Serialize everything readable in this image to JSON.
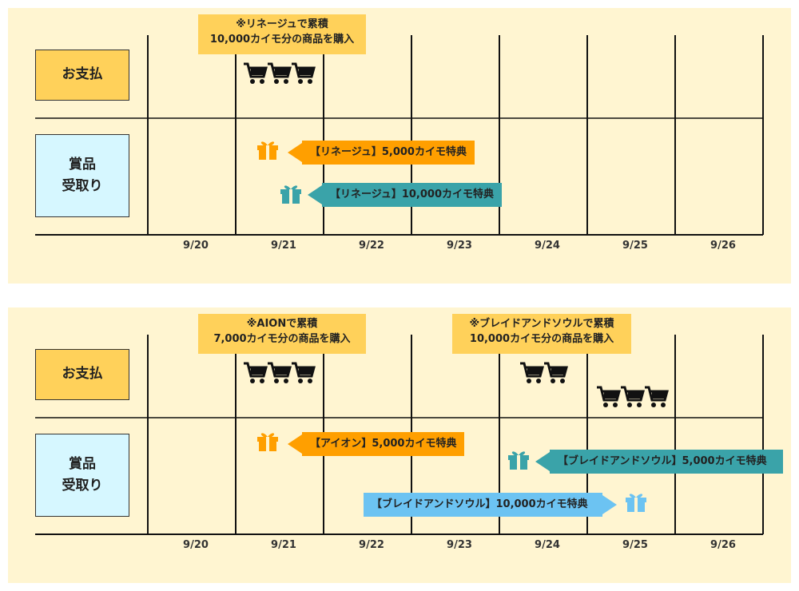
{
  "panels": [
    {
      "payment_label": "お支払",
      "prize_label_line1": "賞品",
      "prize_label_line2": "受取り",
      "dates": [
        "9/20",
        "9/21",
        "9/22",
        "9/23",
        "9/24",
        "9/25",
        "9/26"
      ],
      "notes": [
        {
          "line1": "※リネージュで累積",
          "line2": "10,000カイモ分の商品を購入"
        }
      ],
      "rewards": [
        {
          "label": "【リネージュ】5,000カイモ特典",
          "color": "#ff9f00"
        },
        {
          "label": "【リネージュ】10,000カイモ特典",
          "color": "#3aa3a9"
        }
      ]
    },
    {
      "payment_label": "お支払",
      "prize_label_line1": "賞品",
      "prize_label_line2": "受取り",
      "dates": [
        "9/20",
        "9/21",
        "9/22",
        "9/23",
        "9/24",
        "9/25",
        "9/26"
      ],
      "notes": [
        {
          "line1": "※AIONで累積",
          "line2": "7,000カイモ分の商品を購入"
        },
        {
          "line1": "※ブレイドアンドソウルで累積",
          "line2": "10,000カイモ分の商品を購入"
        }
      ],
      "rewards": [
        {
          "label": "【アイオン】5,000カイモ特典",
          "color": "#ff9f00"
        },
        {
          "label": "【ブレイドアンドソウル】5,000カイモ特典",
          "color": "#3aa3a9"
        },
        {
          "label": "【ブレイドアンドソウル】10,000カイモ特典",
          "color": "#6cc3f2"
        }
      ]
    }
  ],
  "icons": {
    "cart": "shopping-cart-icon",
    "gift": "gift-icon"
  },
  "colors": {
    "panel_bg": "#fff5d1",
    "payment_box": "#ffd15a",
    "prize_box": "#d6f7ff",
    "orange": "#ff9f00",
    "teal": "#3aa3a9",
    "blue": "#6cc3f2"
  }
}
